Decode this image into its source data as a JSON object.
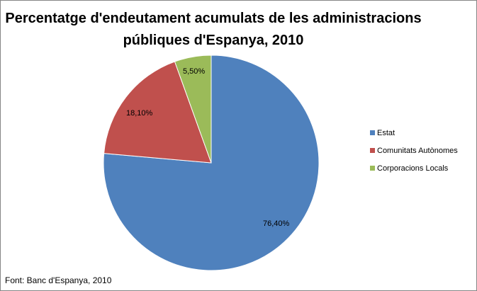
{
  "chart_data": {
    "type": "pie",
    "title": "Percentatge d'endeutament acumulats de les administracions públiques d'Espanya, 2010",
    "categories": [
      "Estat",
      "Comunitats Autònomes",
      "Corporacions Locals"
    ],
    "values": [
      76.4,
      18.1,
      5.5
    ],
    "data_labels": [
      "76,40%",
      "18,10%",
      "5,50%"
    ],
    "colors": [
      "#4F81BD",
      "#C0504D",
      "#9BBB59"
    ],
    "legend_position": "right",
    "source": "Font: Banc d'Espanya, 2010"
  }
}
